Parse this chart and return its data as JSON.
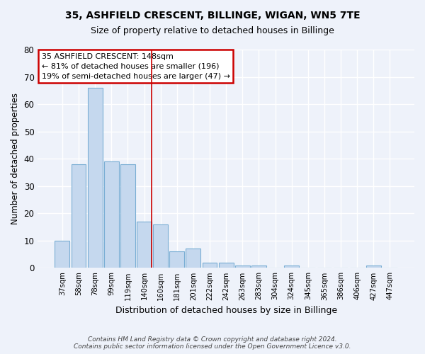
{
  "title": "35, ASHFIELD CRESCENT, BILLINGE, WIGAN, WN5 7TE",
  "subtitle": "Size of property relative to detached houses in Billinge",
  "xlabel": "Distribution of detached houses by size in Billinge",
  "ylabel": "Number of detached properties",
  "categories": [
    "37sqm",
    "58sqm",
    "78sqm",
    "99sqm",
    "119sqm",
    "140sqm",
    "160sqm",
    "181sqm",
    "201sqm",
    "222sqm",
    "242sqm",
    "263sqm",
    "283sqm",
    "304sqm",
    "324sqm",
    "345sqm",
    "365sqm",
    "386sqm",
    "406sqm",
    "427sqm",
    "447sqm"
  ],
  "values": [
    10,
    38,
    66,
    39,
    38,
    17,
    16,
    6,
    7,
    2,
    2,
    1,
    1,
    0,
    1,
    0,
    0,
    0,
    0,
    1,
    0
  ],
  "bar_color": "#c5d8ee",
  "bar_edge_color": "#7aaed4",
  "highlight_index": 5,
  "highlight_line_color": "#cc0000",
  "ylim": [
    0,
    80
  ],
  "yticks": [
    0,
    10,
    20,
    30,
    40,
    50,
    60,
    70,
    80
  ],
  "annotation_line1": "35 ASHFIELD CRESCENT: 148sqm",
  "annotation_line2": "← 81% of detached houses are smaller (196)",
  "annotation_line3": "19% of semi-detached houses are larger (47) →",
  "annotation_box_color": "#ffffff",
  "annotation_box_edge": "#cc0000",
  "footer": "Contains HM Land Registry data © Crown copyright and database right 2024.\nContains public sector information licensed under the Open Government Licence v3.0.",
  "bg_color": "#eef2fa",
  "grid_color": "#ffffff"
}
